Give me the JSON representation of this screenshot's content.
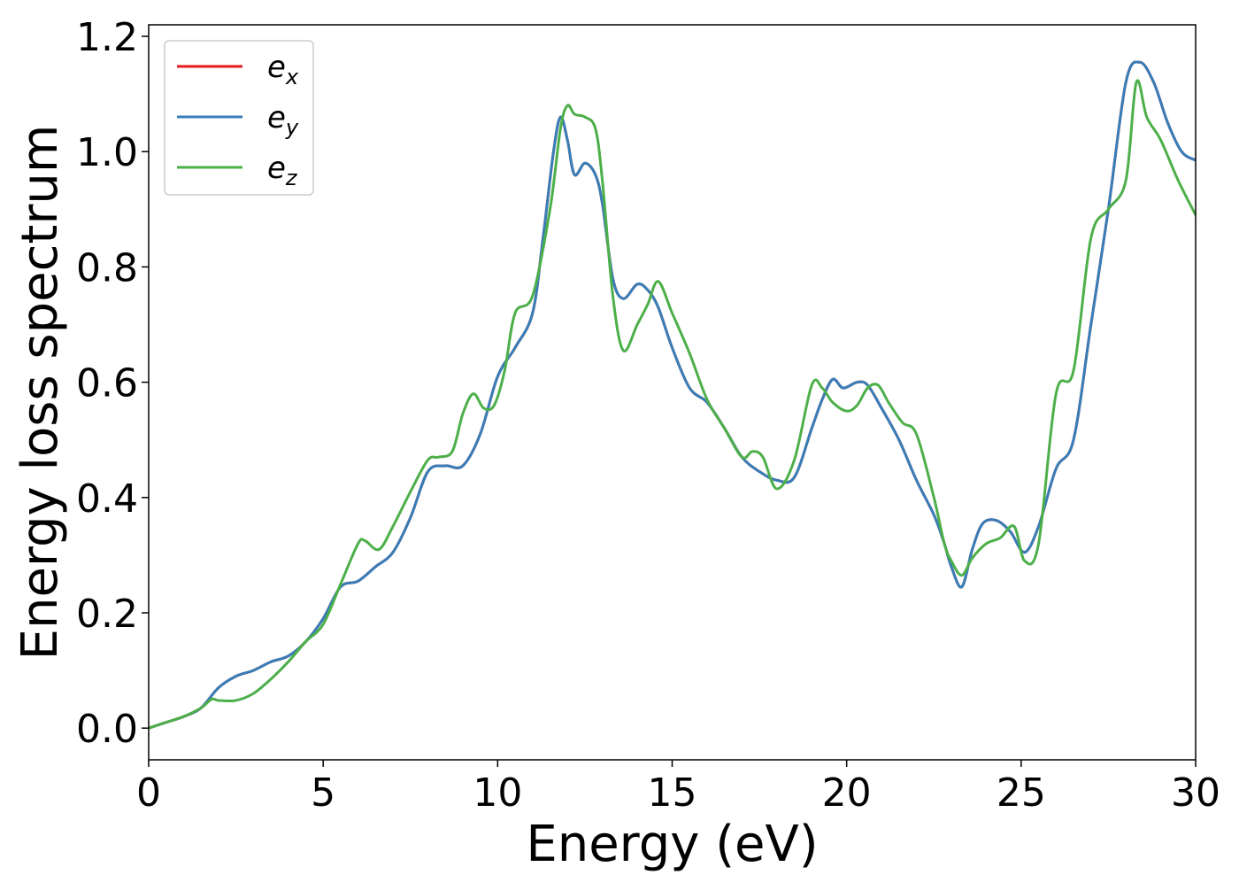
{
  "chart_data": {
    "type": "line",
    "title": "",
    "xlabel": "Energy (eV)",
    "ylabel": "Energy loss spectrum",
    "xlim": [
      0,
      30
    ],
    "ylim": [
      -0.055,
      1.22
    ],
    "xticks": [
      0,
      5,
      10,
      15,
      20,
      25,
      30
    ],
    "yticks": [
      0.0,
      0.2,
      0.4,
      0.6,
      0.8,
      1.0,
      1.2
    ],
    "xtick_labels": [
      "0",
      "5",
      "10",
      "15",
      "20",
      "25",
      "30"
    ],
    "ytick_labels": [
      "0.0",
      "0.2",
      "0.4",
      "0.6",
      "0.8",
      "1.0",
      "1.2"
    ],
    "grid": false,
    "legend_position": "top-left",
    "series": [
      {
        "name": "e",
        "subscript": "x",
        "color": "#e41a1c",
        "x": [
          0,
          0.5,
          1,
          1.5,
          2,
          2.5,
          3,
          3.5,
          4,
          4.5,
          5,
          5.5,
          6,
          6.5,
          7,
          7.5,
          8,
          8.5,
          9,
          9.5,
          10,
          10.5,
          11,
          11.3,
          11.6,
          11.8,
          12,
          12.2,
          12.5,
          12.8,
          13,
          13.3,
          13.6,
          14,
          14.3,
          14.6,
          15,
          15.5,
          16,
          16.5,
          17,
          17.5,
          18,
          18.5,
          19,
          19.3,
          19.6,
          19.9,
          20.3,
          20.6,
          21,
          21.5,
          22,
          22.5,
          22.8,
          23,
          23.3,
          23.6,
          23.9,
          24.3,
          24.7,
          25.1,
          25.5,
          26,
          26.5,
          27,
          27.5,
          28,
          28.4,
          28.8,
          29.2,
          29.6,
          30
        ],
        "y": [
          0,
          0.01,
          0.02,
          0.035,
          0.07,
          0.09,
          0.1,
          0.115,
          0.125,
          0.15,
          0.19,
          0.245,
          0.255,
          0.28,
          0.305,
          0.365,
          0.445,
          0.455,
          0.455,
          0.51,
          0.61,
          0.66,
          0.72,
          0.85,
          1.0,
          1.06,
          1.02,
          0.96,
          0.98,
          0.96,
          0.91,
          0.78,
          0.745,
          0.77,
          0.76,
          0.73,
          0.66,
          0.59,
          0.565,
          0.52,
          0.47,
          0.445,
          0.43,
          0.435,
          0.52,
          0.57,
          0.605,
          0.59,
          0.6,
          0.595,
          0.555,
          0.5,
          0.43,
          0.37,
          0.32,
          0.28,
          0.245,
          0.31,
          0.355,
          0.36,
          0.34,
          0.305,
          0.35,
          0.45,
          0.5,
          0.7,
          0.9,
          1.12,
          1.155,
          1.12,
          1.05,
          1.0,
          0.985
        ]
      },
      {
        "name": "e",
        "subscript": "y",
        "color": "#377eb8",
        "x": [
          0,
          0.5,
          1,
          1.5,
          2,
          2.5,
          3,
          3.5,
          4,
          4.5,
          5,
          5.5,
          6,
          6.5,
          7,
          7.5,
          8,
          8.5,
          9,
          9.5,
          10,
          10.5,
          11,
          11.3,
          11.6,
          11.8,
          12,
          12.2,
          12.5,
          12.8,
          13,
          13.3,
          13.6,
          14,
          14.3,
          14.6,
          15,
          15.5,
          16,
          16.5,
          17,
          17.5,
          18,
          18.5,
          19,
          19.3,
          19.6,
          19.9,
          20.3,
          20.6,
          21,
          21.5,
          22,
          22.5,
          22.8,
          23,
          23.3,
          23.6,
          23.9,
          24.3,
          24.7,
          25.1,
          25.5,
          26,
          26.5,
          27,
          27.5,
          28,
          28.4,
          28.8,
          29.2,
          29.6,
          30
        ],
        "y": [
          0,
          0.01,
          0.02,
          0.035,
          0.07,
          0.09,
          0.1,
          0.115,
          0.125,
          0.15,
          0.19,
          0.245,
          0.255,
          0.28,
          0.305,
          0.365,
          0.445,
          0.455,
          0.455,
          0.51,
          0.61,
          0.66,
          0.72,
          0.85,
          1.0,
          1.06,
          1.02,
          0.96,
          0.98,
          0.96,
          0.91,
          0.78,
          0.745,
          0.77,
          0.76,
          0.73,
          0.66,
          0.59,
          0.565,
          0.52,
          0.47,
          0.445,
          0.43,
          0.435,
          0.52,
          0.57,
          0.605,
          0.59,
          0.6,
          0.595,
          0.555,
          0.5,
          0.43,
          0.37,
          0.32,
          0.28,
          0.245,
          0.31,
          0.355,
          0.36,
          0.34,
          0.305,
          0.35,
          0.45,
          0.5,
          0.7,
          0.9,
          1.12,
          1.155,
          1.12,
          1.05,
          1.0,
          0.985
        ]
      },
      {
        "name": "e",
        "subscript": "z",
        "color": "#4daf4a",
        "x": [
          0,
          0.5,
          1,
          1.5,
          1.8,
          2,
          2.5,
          3,
          3.5,
          4,
          4.5,
          5,
          5.5,
          6,
          6.2,
          6.6,
          7,
          7.5,
          8,
          8.3,
          8.7,
          9,
          9.3,
          9.6,
          9.9,
          10.2,
          10.5,
          11,
          11.5,
          11.8,
          12,
          12.2,
          12.5,
          12.8,
          13,
          13.3,
          13.6,
          14,
          14.3,
          14.6,
          15,
          15.5,
          16,
          16.5,
          17,
          17.3,
          17.6,
          18,
          18.5,
          19,
          19.3,
          19.6,
          20,
          20.3,
          20.6,
          20.9,
          21.2,
          21.6,
          22,
          22.5,
          22.8,
          23,
          23.3,
          23.6,
          24,
          24.4,
          24.8,
          25.1,
          25.5,
          26,
          26.5,
          27,
          27.5,
          28,
          28.3,
          28.6,
          29,
          29.5,
          30
        ],
        "y": [
          0,
          0.01,
          0.02,
          0.035,
          0.05,
          0.048,
          0.048,
          0.06,
          0.085,
          0.115,
          0.15,
          0.18,
          0.25,
          0.32,
          0.325,
          0.31,
          0.35,
          0.41,
          0.465,
          0.47,
          0.48,
          0.545,
          0.58,
          0.555,
          0.56,
          0.62,
          0.72,
          0.75,
          0.9,
          1.04,
          1.08,
          1.065,
          1.06,
          1.04,
          0.95,
          0.75,
          0.655,
          0.7,
          0.735,
          0.775,
          0.72,
          0.65,
          0.57,
          0.52,
          0.47,
          0.48,
          0.47,
          0.415,
          0.465,
          0.595,
          0.59,
          0.565,
          0.55,
          0.56,
          0.59,
          0.595,
          0.565,
          0.53,
          0.51,
          0.4,
          0.32,
          0.29,
          0.265,
          0.295,
          0.32,
          0.33,
          0.35,
          0.29,
          0.32,
          0.58,
          0.62,
          0.85,
          0.9,
          0.95,
          1.12,
          1.06,
          1.02,
          0.95,
          0.89
        ]
      }
    ]
  }
}
